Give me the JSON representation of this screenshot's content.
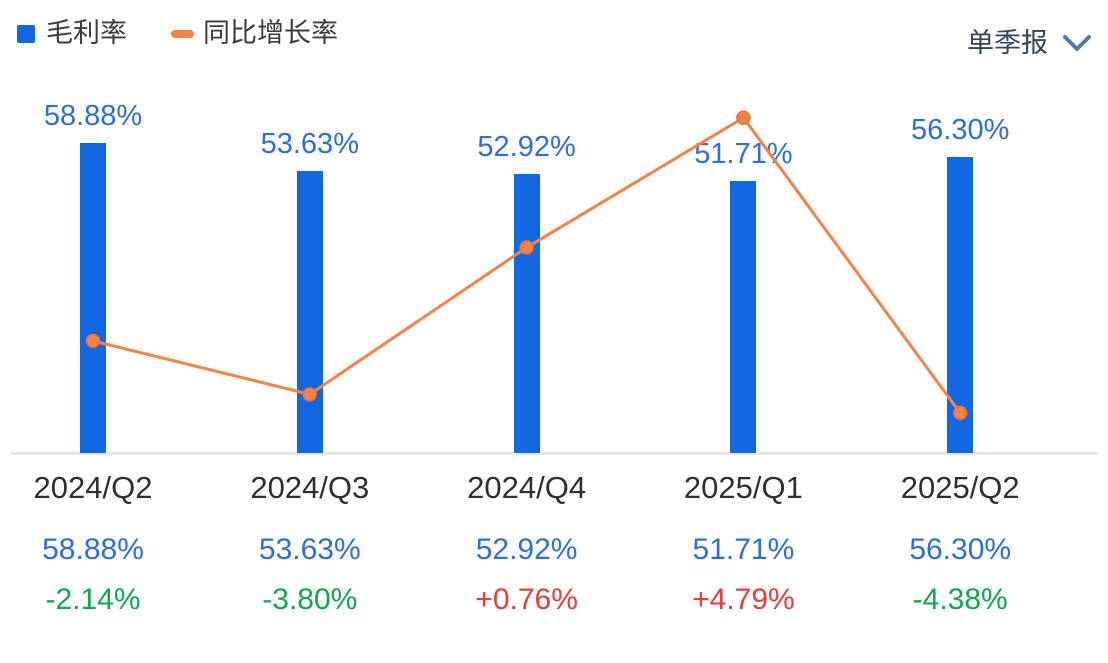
{
  "legend": {
    "items": [
      {
        "label": "毛利率",
        "type": "bar",
        "color": "#1268E0"
      },
      {
        "label": "同比增长率",
        "type": "line",
        "color": "#F58345"
      }
    ]
  },
  "period_selector": {
    "label": "单季报"
  },
  "chart_data": {
    "type": "bar",
    "subtype": "bar-line-combo",
    "title": "",
    "categories": [
      "2024/Q2",
      "2024/Q3",
      "2024/Q4",
      "2025/Q1",
      "2025/Q2"
    ],
    "series": [
      {
        "name": "毛利率",
        "type": "bar",
        "unit": "%",
        "values": [
          58.88,
          53.63,
          52.92,
          51.71,
          56.3
        ],
        "labels": [
          "58.88%",
          "53.63%",
          "52.92%",
          "51.71%",
          "56.30%"
        ],
        "color": "#1268E0"
      },
      {
        "name": "同比增长率",
        "type": "line",
        "unit": "%",
        "values": [
          -2.14,
          -3.8,
          0.76,
          4.79,
          -4.38
        ],
        "labels": [
          "-2.14%",
          "-3.80%",
          "+0.76%",
          "+4.79%",
          "-4.38%"
        ],
        "color": "#F58345"
      }
    ],
    "value_labels_shown": true,
    "bar_axis_min": 0,
    "grid": false,
    "legend_position": "top-left",
    "xlabel": "",
    "ylabel": ""
  },
  "colors": {
    "bar": "#1268E0",
    "line": "#F58345",
    "line_marker_edge": "#EA6F3C",
    "value_text": "#2E6CE5",
    "positive": "#E83C3C",
    "negative": "#0FA84F",
    "axis_line": "#E7E7E7",
    "category_text": "#2B2F36",
    "legend_text": "#3C3C3C",
    "selector_text": "#32455C",
    "chevron": "#4D7CA9"
  }
}
